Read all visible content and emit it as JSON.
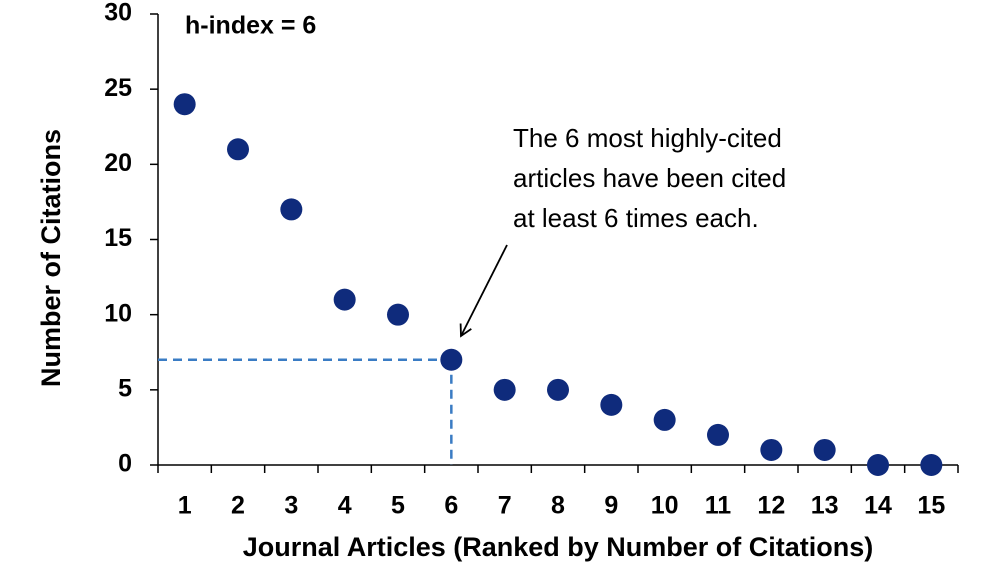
{
  "chart_data": {
    "type": "scatter",
    "title": "h-index = 6",
    "annotation": [
      "The 6 most highly-cited",
      "articles have been cited",
      "at least 6 times each."
    ],
    "x_label": "Journal Articles (Ranked by Number of Citations)",
    "y_label": "Number of Citations",
    "categories": [
      "1",
      "2",
      "3",
      "4",
      "5",
      "6",
      "7",
      "8",
      "9",
      "10",
      "11",
      "12",
      "13",
      "14",
      "15"
    ],
    "values": [
      24,
      21,
      17,
      11,
      10,
      7,
      5,
      5,
      4,
      3,
      2,
      1,
      1,
      0,
      0
    ],
    "color": "#0f2b7c",
    "highlight_index": 5,
    "highlight_color": "#3a7cc4",
    "ylim": [
      0,
      30
    ],
    "yticks": [
      0,
      5,
      10,
      15,
      20,
      25,
      30
    ],
    "grid": false
  }
}
